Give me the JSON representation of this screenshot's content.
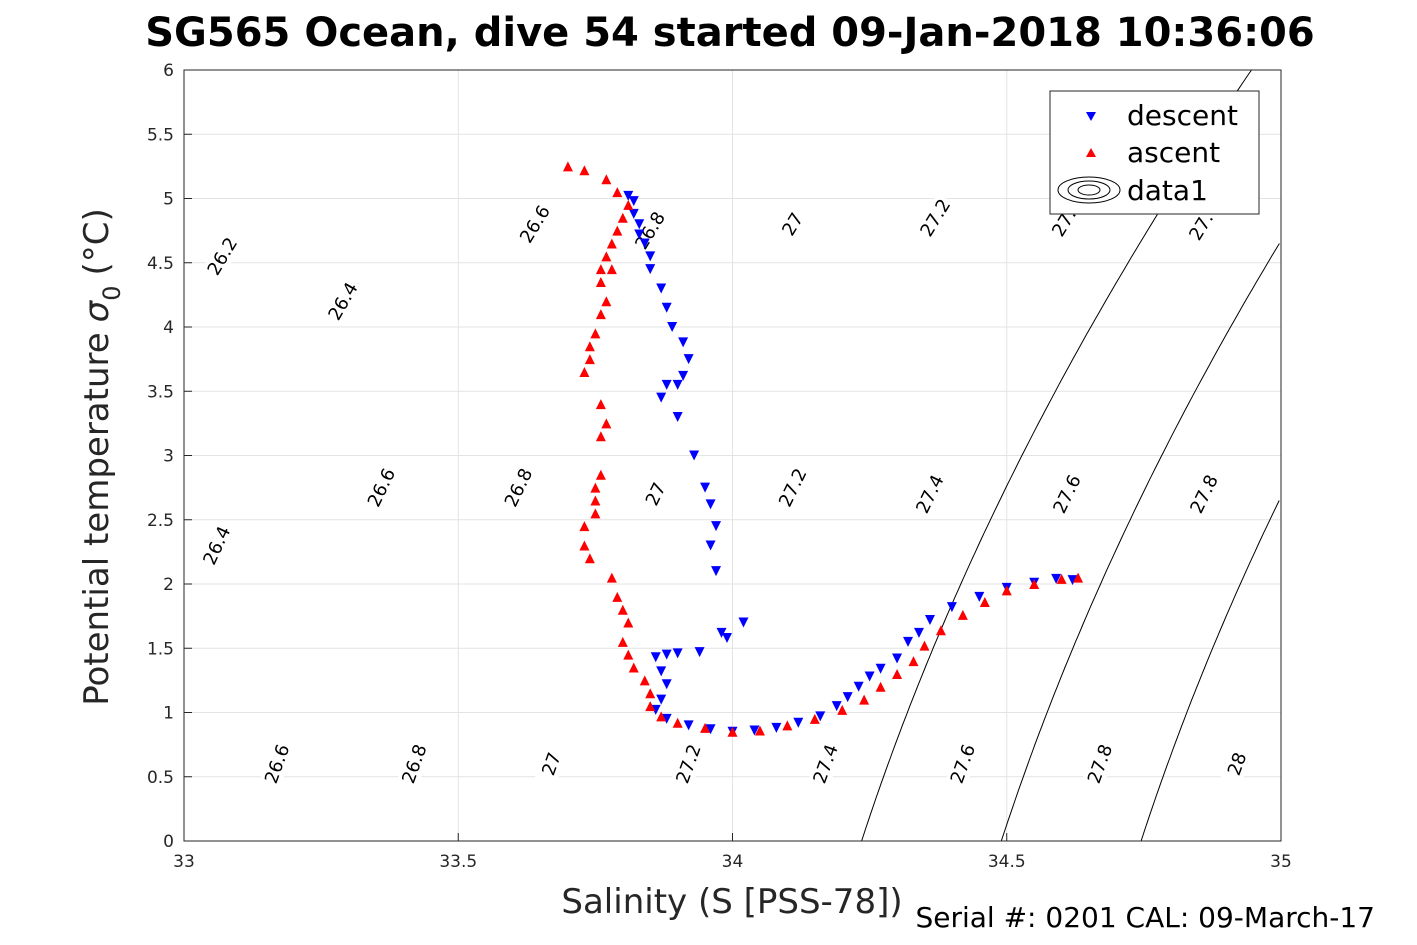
{
  "chart_data": {
    "type": "scatter",
    "title": "SG565 Ocean, dive 54 started 09-Jan-2018 10:36:06",
    "xlabel": "Salinity (S [PSS-78])",
    "ylabel": "Potential temperature σ₀ (°C)",
    "ylabel_main": "Potential temperature",
    "ylabel_sym": "σ",
    "ylabel_sub": "0",
    "ylabel_unit": "(°C)",
    "footer": "Serial #: 0201  CAL: 09-March-17",
    "xlim": [
      33,
      35
    ],
    "ylim": [
      0,
      6
    ],
    "xticks": [
      "33",
      "33.5",
      "34",
      "34.5",
      "35"
    ],
    "yticks": [
      "0",
      "0.5",
      "1",
      "1.5",
      "2",
      "2.5",
      "3",
      "3.5",
      "4",
      "4.5",
      "5",
      "5.5",
      "6"
    ],
    "grid": true,
    "legend_position": "top-right",
    "legend": [
      "descent",
      "ascent",
      "data1"
    ],
    "series": [
      {
        "name": "descent",
        "color": "#0000ff",
        "marker": "triangle-down",
        "points": [
          [
            33.81,
            5.02
          ],
          [
            33.82,
            4.98
          ],
          [
            33.82,
            4.88
          ],
          [
            33.83,
            4.8
          ],
          [
            33.83,
            4.72
          ],
          [
            33.84,
            4.65
          ],
          [
            33.85,
            4.55
          ],
          [
            33.85,
            4.45
          ],
          [
            33.87,
            4.3
          ],
          [
            33.88,
            4.15
          ],
          [
            33.89,
            4.0
          ],
          [
            33.91,
            3.88
          ],
          [
            33.92,
            3.75
          ],
          [
            33.91,
            3.62
          ],
          [
            33.9,
            3.55
          ],
          [
            33.88,
            3.55
          ],
          [
            33.87,
            3.45
          ],
          [
            33.9,
            3.3
          ],
          [
            33.93,
            3.0
          ],
          [
            33.95,
            2.75
          ],
          [
            33.96,
            2.62
          ],
          [
            33.97,
            2.45
          ],
          [
            33.96,
            2.3
          ],
          [
            33.97,
            2.1
          ],
          [
            33.98,
            1.62
          ],
          [
            33.99,
            1.58
          ],
          [
            34.02,
            1.7
          ],
          [
            33.94,
            1.47
          ],
          [
            33.9,
            1.46
          ],
          [
            33.88,
            1.45
          ],
          [
            33.86,
            1.43
          ],
          [
            33.87,
            1.32
          ],
          [
            33.88,
            1.22
          ],
          [
            33.87,
            1.1
          ],
          [
            33.86,
            1.02
          ],
          [
            33.88,
            0.95
          ],
          [
            33.92,
            0.9
          ],
          [
            33.96,
            0.87
          ],
          [
            34.0,
            0.85
          ],
          [
            34.04,
            0.86
          ],
          [
            34.08,
            0.88
          ],
          [
            34.12,
            0.92
          ],
          [
            34.16,
            0.97
          ],
          [
            34.19,
            1.05
          ],
          [
            34.21,
            1.12
          ],
          [
            34.23,
            1.2
          ],
          [
            34.25,
            1.28
          ],
          [
            34.27,
            1.34
          ],
          [
            34.3,
            1.42
          ],
          [
            34.32,
            1.55
          ],
          [
            34.34,
            1.62
          ],
          [
            34.36,
            1.72
          ],
          [
            34.4,
            1.82
          ],
          [
            34.45,
            1.9
          ],
          [
            34.5,
            1.97
          ],
          [
            34.55,
            2.01
          ],
          [
            34.59,
            2.04
          ],
          [
            34.62,
            2.03
          ]
        ]
      },
      {
        "name": "ascent",
        "color": "#ff0000",
        "marker": "triangle-up",
        "points": [
          [
            33.7,
            5.25
          ],
          [
            33.73,
            5.22
          ],
          [
            33.77,
            5.15
          ],
          [
            33.79,
            5.05
          ],
          [
            33.81,
            4.95
          ],
          [
            33.8,
            4.85
          ],
          [
            33.79,
            4.75
          ],
          [
            33.78,
            4.65
          ],
          [
            33.77,
            4.55
          ],
          [
            33.76,
            4.45
          ],
          [
            33.78,
            4.45
          ],
          [
            33.76,
            4.35
          ],
          [
            33.77,
            4.2
          ],
          [
            33.76,
            4.1
          ],
          [
            33.75,
            3.95
          ],
          [
            33.74,
            3.85
          ],
          [
            33.74,
            3.75
          ],
          [
            33.73,
            3.65
          ],
          [
            33.76,
            3.4
          ],
          [
            33.77,
            3.25
          ],
          [
            33.76,
            3.15
          ],
          [
            33.76,
            2.85
          ],
          [
            33.75,
            2.75
          ],
          [
            33.75,
            2.65
          ],
          [
            33.75,
            2.55
          ],
          [
            33.73,
            2.3
          ],
          [
            33.73,
            2.45
          ],
          [
            33.74,
            2.2
          ],
          [
            33.78,
            2.05
          ],
          [
            33.79,
            1.9
          ],
          [
            33.8,
            1.8
          ],
          [
            33.81,
            1.7
          ],
          [
            33.8,
            1.55
          ],
          [
            33.81,
            1.45
          ],
          [
            33.82,
            1.35
          ],
          [
            33.84,
            1.25
          ],
          [
            33.85,
            1.15
          ],
          [
            33.85,
            1.05
          ],
          [
            33.87,
            0.97
          ],
          [
            33.9,
            0.92
          ],
          [
            33.95,
            0.88
          ],
          [
            34.0,
            0.85
          ],
          [
            34.05,
            0.86
          ],
          [
            34.1,
            0.9
          ],
          [
            34.15,
            0.95
          ],
          [
            34.2,
            1.02
          ],
          [
            34.24,
            1.1
          ],
          [
            34.27,
            1.2
          ],
          [
            34.3,
            1.3
          ],
          [
            34.33,
            1.4
          ],
          [
            34.35,
            1.52
          ],
          [
            34.38,
            1.64
          ],
          [
            34.42,
            1.76
          ],
          [
            34.46,
            1.86
          ],
          [
            34.5,
            1.95
          ],
          [
            34.55,
            2.0
          ],
          [
            34.6,
            2.04
          ],
          [
            34.63,
            2.05
          ]
        ]
      }
    ],
    "density_contours": [
      26.2,
      26.4,
      26.6,
      26.8,
      27,
      27.2,
      27.4,
      27.6,
      27.8,
      28
    ],
    "contour_labels": [
      [
        "26.2",
        33.07,
        4.55
      ],
      [
        "26.4",
        33.29,
        4.2
      ],
      [
        "26.6",
        33.64,
        4.8
      ],
      [
        "26.8",
        33.85,
        4.75
      ],
      [
        "27",
        34.11,
        4.8
      ],
      [
        "27.2",
        34.37,
        4.85
      ],
      [
        "27.4",
        34.61,
        4.85
      ],
      [
        "27.6",
        34.86,
        4.82
      ],
      [
        "26.4",
        33.06,
        2.3
      ],
      [
        "26.6",
        33.36,
        2.75
      ],
      [
        "26.8",
        33.61,
        2.75
      ],
      [
        "27",
        33.86,
        2.7
      ],
      [
        "27.2",
        34.11,
        2.75
      ],
      [
        "27.4",
        34.36,
        2.7
      ],
      [
        "27.6",
        34.61,
        2.7
      ],
      [
        "27.8",
        34.86,
        2.7
      ],
      [
        "26.6",
        33.17,
        0.6
      ],
      [
        "26.8",
        33.42,
        0.6
      ],
      [
        "27",
        33.67,
        0.6
      ],
      [
        "27.2",
        33.92,
        0.6
      ],
      [
        "27.4",
        34.17,
        0.6
      ],
      [
        "27.6",
        34.42,
        0.6
      ],
      [
        "27.8",
        34.67,
        0.6
      ],
      [
        "28",
        34.92,
        0.6
      ]
    ]
  }
}
